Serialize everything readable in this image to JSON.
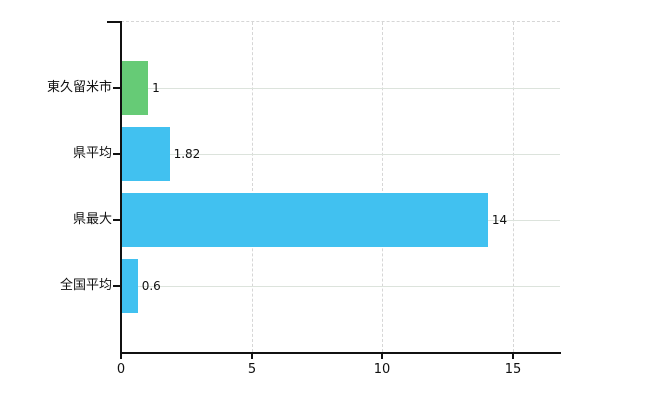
{
  "chart_data": {
    "type": "bar",
    "orientation": "horizontal",
    "title": "",
    "xlabel": "",
    "ylabel": "",
    "categories": [
      "東久留米市",
      "県平均",
      "県最大",
      "全国平均"
    ],
    "values": [
      1,
      1.82,
      14,
      0.6
    ],
    "value_labels": [
      "1",
      "1.82",
      "14",
      "0.6"
    ],
    "bar_colors": [
      "#66cb76",
      "#41c1f0",
      "#41c1f0",
      "#41c1f0"
    ],
    "x_ticks": [
      "0",
      "5",
      "10",
      "15"
    ],
    "xlim": [
      0,
      16.8
    ],
    "grid": "vertical-dashed-plus-row-lines",
    "legend": "none",
    "colors": {
      "axis": "#111111",
      "row_gridline": "#dce3dc",
      "vertical_gridline": "#d6d6d6",
      "background": "#ffffff"
    }
  }
}
